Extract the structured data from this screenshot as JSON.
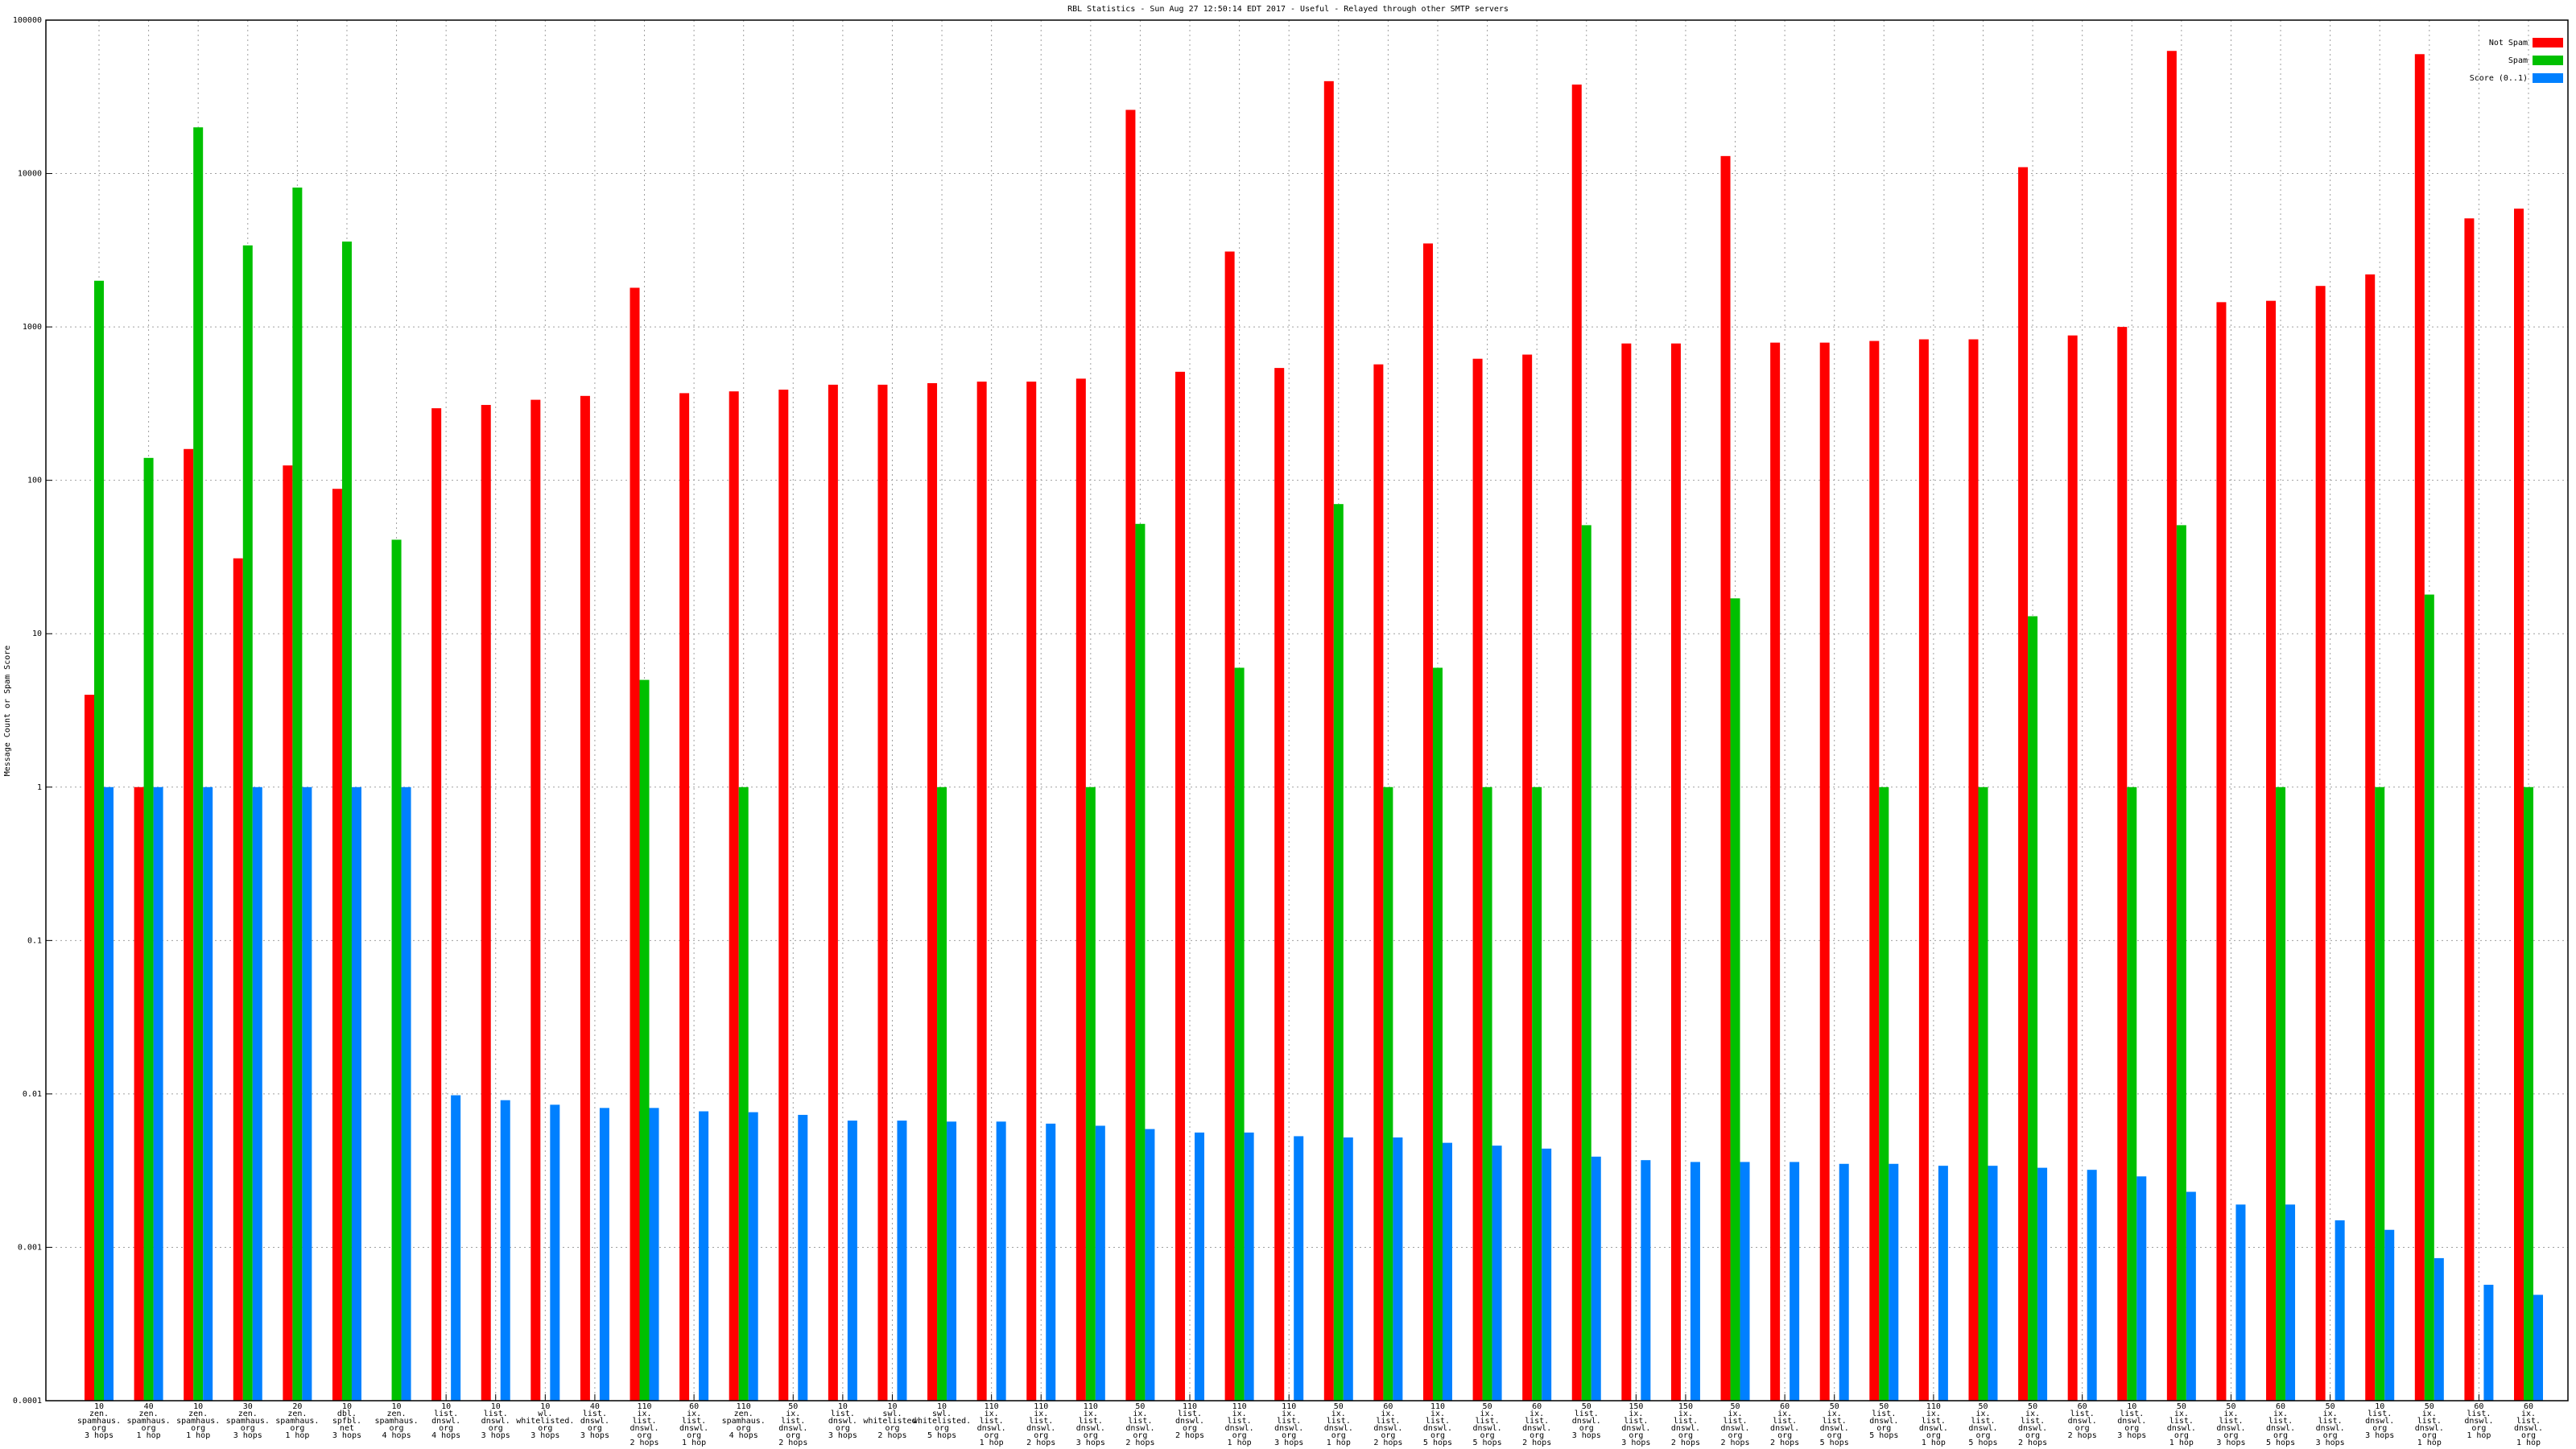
{
  "chart_data": {
    "type": "bar",
    "title": "RBL Statistics - Sun Aug 27 12:50:14 EDT 2017 - Useful - Relayed through other SMTP servers",
    "y_label": "Message Count or Spam Score",
    "categories": [
      [
        "10",
        "zen.",
        "spamhaus.",
        "org",
        "3 hops"
      ],
      [
        "40",
        "zen.",
        "spamhaus.",
        "org",
        "1 hop"
      ],
      [
        "10",
        "zen.",
        "spamhaus.",
        "org",
        "1 hop"
      ],
      [
        "30",
        "zen.",
        "spamhaus.",
        "org",
        "3 hops"
      ],
      [
        "20",
        "zen.",
        "spamhaus.",
        "org",
        "1 hop"
      ],
      [
        "10",
        "dbl.",
        "spfbl.",
        "net",
        "3 hops"
      ],
      [
        "10",
        "zen.",
        "spamhaus.",
        "org",
        "4 hops"
      ],
      [
        "10",
        "list.",
        "dnswl.",
        "org",
        "4 hops"
      ],
      [
        "10",
        "list.",
        "dnswl.",
        "org",
        "3 hops"
      ],
      [
        "10",
        "wl.",
        "whitelisted.",
        "org",
        "3 hops"
      ],
      [
        "40",
        "list.",
        "dnswl.",
        "org",
        "3 hops"
      ],
      [
        "110",
        "ix.",
        "list.",
        "dnswl.",
        "org",
        "2 hops"
      ],
      [
        "60",
        "ix.",
        "list.",
        "dnswl.",
        "org",
        "1 hop"
      ],
      [
        "110",
        "zen.",
        "spamhaus.",
        "org",
        "4 hops"
      ],
      [
        "50",
        "ix.",
        "list.",
        "dnswl.",
        "org",
        "2 hops"
      ],
      [
        "10",
        "list.",
        "dnswl.",
        "org",
        "3 hops"
      ],
      [
        "10",
        "swl.",
        "whitelisted.",
        "org",
        "2 hops"
      ],
      [
        "10",
        "swl.",
        "whitelisted.",
        "org",
        "5 hops"
      ],
      [
        "110",
        "ix.",
        "list.",
        "dnswl.",
        "org",
        "1 hop"
      ],
      [
        "110",
        "ix.",
        "list.",
        "dnswl.",
        "org",
        "2 hops"
      ],
      [
        "110",
        "ix.",
        "list.",
        "dnswl.",
        "org",
        "3 hops"
      ],
      [
        "50",
        "ix.",
        "list.",
        "dnswl.",
        "org",
        "2 hops"
      ],
      [
        "110",
        "list.",
        "dnswl.",
        "org",
        "2 hops"
      ],
      [
        "110",
        "ix.",
        "list.",
        "dnswl.",
        "org",
        "1 hop"
      ],
      [
        "110",
        "ix.",
        "list.",
        "dnswl.",
        "org",
        "3 hops"
      ],
      [
        "50",
        "ix.",
        "list.",
        "dnswl.",
        "org",
        "1 hop"
      ],
      [
        "60",
        "ix.",
        "list.",
        "dnswl.",
        "org",
        "2 hops"
      ],
      [
        "110",
        "ix.",
        "list.",
        "dnswl.",
        "org",
        "5 hops"
      ],
      [
        "50",
        "ix.",
        "list.",
        "dnswl.",
        "org",
        "5 hops"
      ],
      [
        "60",
        "ix.",
        "list.",
        "dnswl.",
        "org",
        "2 hops"
      ],
      [
        "50",
        "list.",
        "dnswl.",
        "org",
        "3 hops"
      ],
      [
        "150",
        "ix.",
        "list.",
        "dnswl.",
        "org",
        "3 hops"
      ],
      [
        "150",
        "ix.",
        "list.",
        "dnswl.",
        "org",
        "2 hops"
      ],
      [
        "50",
        "ix.",
        "list.",
        "dnswl.",
        "org",
        "2 hops"
      ],
      [
        "60",
        "ix.",
        "list.",
        "dnswl.",
        "org",
        "2 hops"
      ],
      [
        "50",
        "ix.",
        "list.",
        "dnswl.",
        "org",
        "5 hops"
      ],
      [
        "50",
        "list.",
        "dnswl.",
        "org",
        "5 hops"
      ],
      [
        "110",
        "ix.",
        "list.",
        "dnswl.",
        "org",
        "1 hop"
      ],
      [
        "50",
        "ix.",
        "list.",
        "dnswl.",
        "org",
        "5 hops"
      ],
      [
        "50",
        "ix.",
        "list.",
        "dnswl.",
        "org",
        "2 hops"
      ],
      [
        "60",
        "list.",
        "dnswl.",
        "org",
        "2 hops"
      ],
      [
        "10",
        "list.",
        "dnswl.",
        "org",
        "3 hops"
      ],
      [
        "50",
        "ix.",
        "list.",
        "dnswl.",
        "org",
        "1 hop"
      ],
      [
        "50",
        "ix.",
        "list.",
        "dnswl.",
        "org",
        "3 hops"
      ],
      [
        "60",
        "ix.",
        "list.",
        "dnswl.",
        "org",
        "5 hops"
      ],
      [
        "50",
        "ix.",
        "list.",
        "dnswl.",
        "org",
        "3 hops"
      ],
      [
        "10",
        "list.",
        "dnswl.",
        "org",
        "3 hops"
      ],
      [
        "50",
        "ix.",
        "list.",
        "dnswl.",
        "org",
        "1 hop"
      ],
      [
        "60",
        "list.",
        "dnswl.",
        "org",
        "1 hop"
      ],
      [
        "60",
        "ix.",
        "list.",
        "dnswl.",
        "org",
        "1 hop"
      ]
    ],
    "series": [
      {
        "name": "Not Spam",
        "color": "#ff0000",
        "values": [
          4,
          1,
          160,
          31,
          125,
          88,
          null,
          295,
          310,
          335,
          355,
          1800,
          370,
          380,
          390,
          420,
          420,
          430,
          440,
          440,
          460,
          26000,
          510,
          3100,
          540,
          40000,
          570,
          3500,
          620,
          660,
          38000,
          780,
          780,
          13000,
          790,
          790,
          810,
          830,
          830,
          11000,
          880,
          1000,
          63000,
          1450,
          1480,
          1850,
          2200,
          60000,
          5100,
          5900
        ]
      },
      {
        "name": "Spam",
        "color": "#00c000",
        "values": [
          2000,
          140,
          20000,
          3400,
          8100,
          3600,
          41,
          null,
          null,
          null,
          null,
          5,
          null,
          1,
          null,
          null,
          null,
          1,
          null,
          null,
          1,
          52,
          null,
          6,
          null,
          70,
          1,
          6,
          1,
          1,
          51,
          null,
          null,
          17,
          null,
          null,
          1,
          null,
          1,
          13,
          null,
          1,
          51,
          null,
          1,
          null,
          1,
          18,
          null,
          1
        ]
      },
      {
        "name": "Score (0..1)",
        "color": "#0080ff",
        "values": [
          1,
          1,
          1,
          1,
          1,
          1,
          1,
          0.0098,
          0.0091,
          0.0085,
          0.0081,
          0.0081,
          0.0077,
          0.0076,
          0.0073,
          0.0067,
          0.0067,
          0.0066,
          0.0066,
          0.0064,
          0.0062,
          0.0059,
          0.0056,
          0.0056,
          0.0053,
          0.0052,
          0.0052,
          0.0048,
          0.0046,
          0.0044,
          0.0039,
          0.0037,
          0.0036,
          0.0036,
          0.0036,
          0.0035,
          0.0035,
          0.0034,
          0.0034,
          0.0033,
          0.0032,
          0.0029,
          0.0023,
          0.0019,
          0.0019,
          0.0015,
          0.0013,
          0.00085,
          0.00057,
          0.00049
        ]
      }
    ],
    "ylim": [
      0.0001,
      100000
    ],
    "yticks": [
      0.0001,
      0.001,
      0.01,
      0.1,
      1,
      10,
      100,
      1000,
      10000,
      100000
    ],
    "ylog": true,
    "grid": true,
    "legend": "top-right"
  }
}
